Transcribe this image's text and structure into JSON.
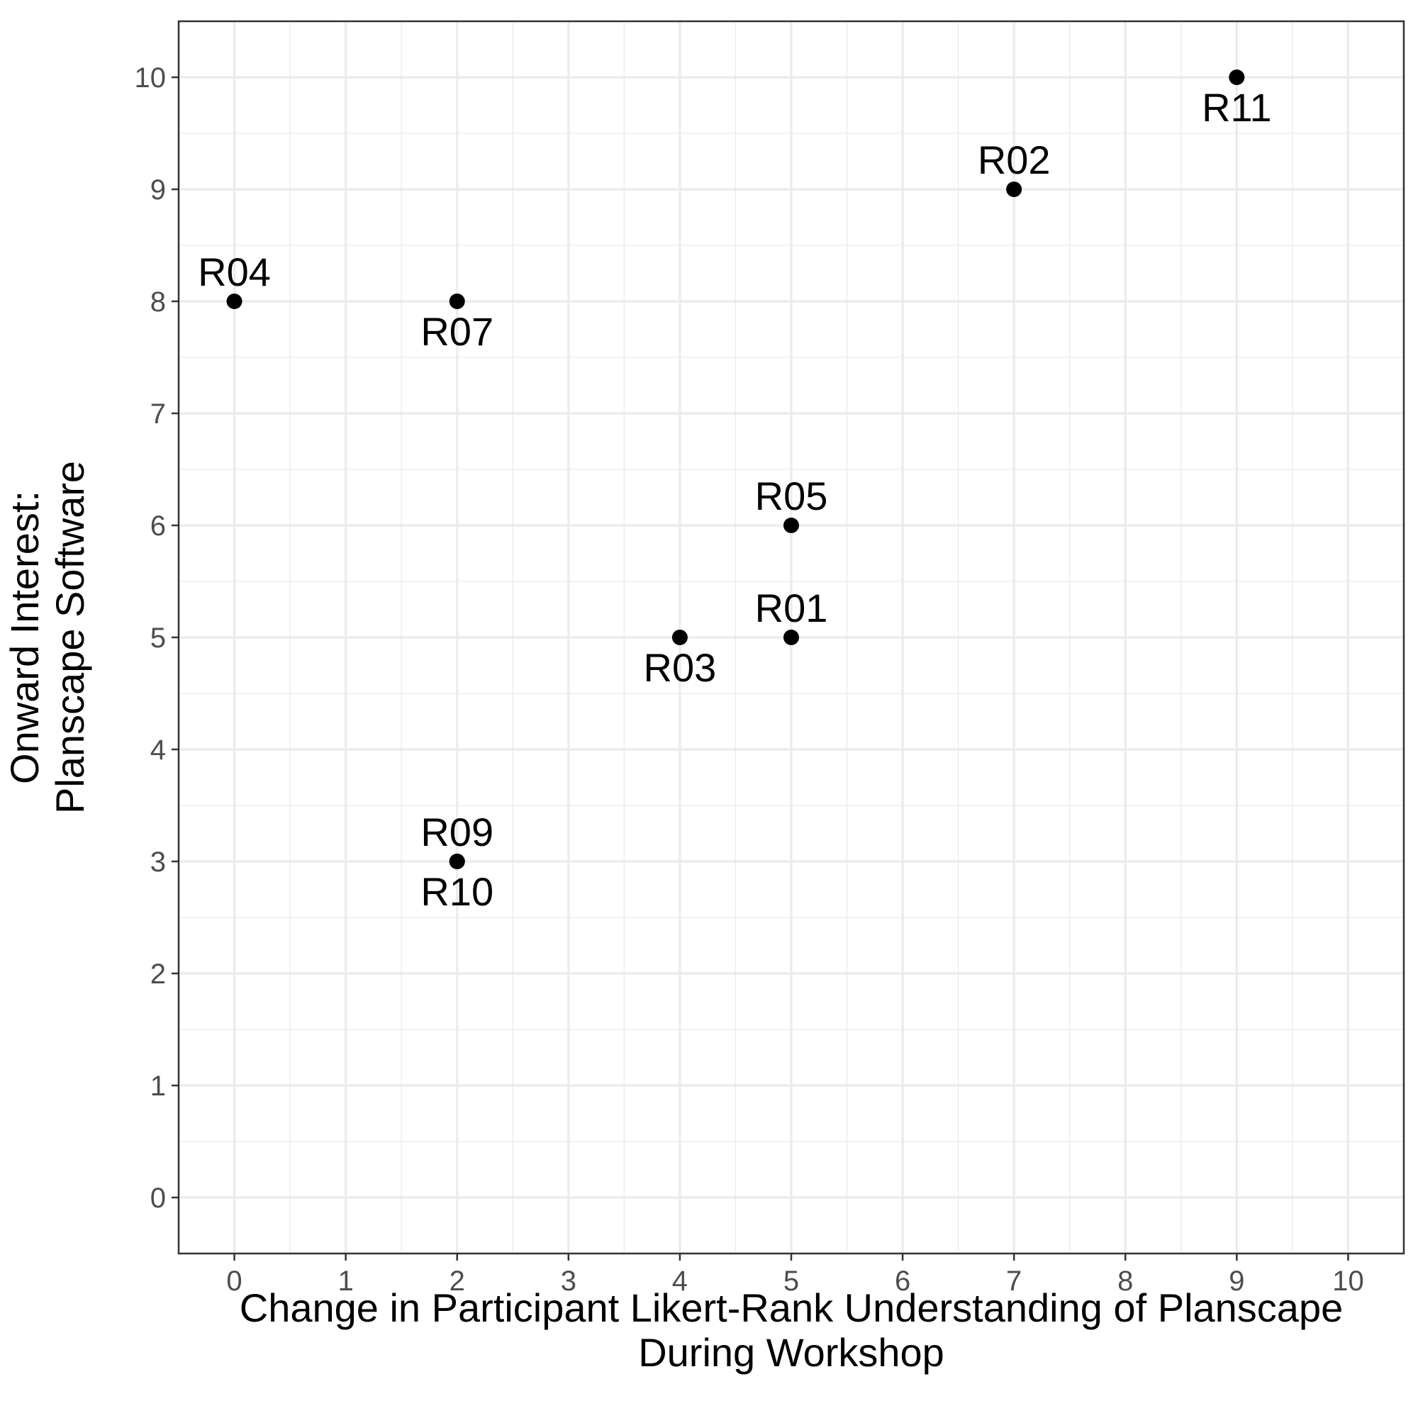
{
  "chart_data": {
    "type": "scatter",
    "title": "",
    "xlabel": "Change in Participant Likert-Rank Understanding of Planscape\nDuring Workshop",
    "ylabel": "Onward Interest:\nPlanscape Software",
    "xlim": [
      -0.5,
      10.5
    ],
    "ylim": [
      -0.5,
      10.5
    ],
    "x_ticks": [
      "0",
      "1",
      "2",
      "3",
      "4",
      "5",
      "6",
      "7",
      "8",
      "9",
      "10"
    ],
    "y_ticks": [
      "0",
      "1",
      "2",
      "3",
      "4",
      "5",
      "6",
      "7",
      "8",
      "9",
      "10"
    ],
    "grid": true,
    "legend": "none",
    "point_color": "#000000",
    "points": [
      {
        "id": "R01",
        "x": 5,
        "y": 5,
        "label_position": "above"
      },
      {
        "id": "R02",
        "x": 7,
        "y": 9,
        "label_position": "above"
      },
      {
        "id": "R03",
        "x": 4,
        "y": 5,
        "label_position": "below"
      },
      {
        "id": "R04",
        "x": 0,
        "y": 8,
        "label_position": "above"
      },
      {
        "id": "R05",
        "x": 5,
        "y": 6,
        "label_position": "above"
      },
      {
        "id": "R07",
        "x": 2,
        "y": 8,
        "label_position": "below"
      },
      {
        "id": "R09",
        "x": 2,
        "y": 3,
        "label_position": "above"
      },
      {
        "id": "R10",
        "x": 2,
        "y": 3,
        "label_position": "below"
      },
      {
        "id": "R11",
        "x": 9,
        "y": 10,
        "label_position": "below"
      }
    ]
  }
}
